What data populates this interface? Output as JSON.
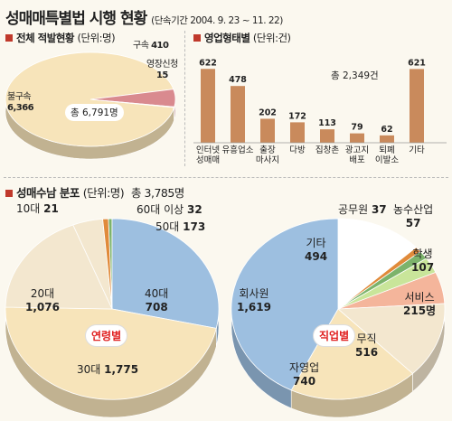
{
  "header": {
    "title": "성매매특별법 시행 현황",
    "subtitle": "(단속기간 2004. 9. 23 ~ 11. 22)"
  },
  "colors": {
    "accent_square": "#c0392b",
    "bar": "#c98a5c",
    "cream": "#f7e4ba",
    "pink": "#d98a8f",
    "blue": "#9dbfe0",
    "light_cream": "#f3e7cf",
    "green": "#7cb36b",
    "orange": "#e08a3a",
    "peach": "#f4b59b",
    "light_green": "#c9e59a"
  },
  "chart_data": [
    {
      "type": "pie",
      "title": "전체 적발현황",
      "unit": "(단위:명)",
      "center_label": "총 6,791명",
      "slices": [
        {
          "name": "불구속",
          "value": 6366,
          "label": "6,366"
        },
        {
          "name": "구속",
          "value": 410,
          "label": "410"
        },
        {
          "name": "영장신청",
          "value": 15,
          "label": "15"
        }
      ]
    },
    {
      "type": "bar",
      "title": "영업형태별",
      "unit": "(단위:건)",
      "total_label": "총 2,349건",
      "categories": [
        "인터넷 성매매",
        "유흥업소",
        "출장 마사지",
        "다방",
        "집창촌",
        "광고지 배포",
        "퇴폐 이발소",
        "기타"
      ],
      "values": [
        622,
        478,
        202,
        172,
        113,
        79,
        62,
        621
      ]
    },
    {
      "type": "pie",
      "title": "성매수남 분포",
      "unit": "(단위:명)",
      "total_label": "총 3,785명",
      "center_label": "연령별",
      "slices": [
        {
          "name": "10대",
          "value": 21,
          "label": "21"
        },
        {
          "name": "20대",
          "value": 1076,
          "label": "1,076"
        },
        {
          "name": "30대",
          "value": 1775,
          "label": "1,775"
        },
        {
          "name": "40대",
          "value": 708,
          "label": "708"
        },
        {
          "name": "50대",
          "value": 173,
          "label": "173"
        },
        {
          "name": "60대 이상",
          "value": 32,
          "label": "32"
        }
      ]
    },
    {
      "type": "pie",
      "center_label": "직업별",
      "slices": [
        {
          "name": "기타",
          "value": 494,
          "label": "494"
        },
        {
          "name": "공무원",
          "value": 37,
          "label": "37"
        },
        {
          "name": "농수산업",
          "value": 57,
          "label": "57"
        },
        {
          "name": "학생",
          "value": 107,
          "label": "107"
        },
        {
          "name": "서비스",
          "value": 215,
          "label": "215명"
        },
        {
          "name": "무직",
          "value": 516,
          "label": "516"
        },
        {
          "name": "자영업",
          "value": 740,
          "label": "740"
        },
        {
          "name": "회사원",
          "value": 1619,
          "label": "1,619"
        }
      ]
    }
  ]
}
